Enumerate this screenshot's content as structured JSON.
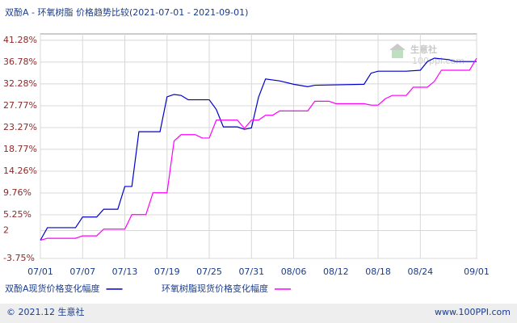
{
  "chart_data": {
    "type": "line",
    "title": "双酚A - 环氧树脂 价格趋势比较(2021-07-01 - 2021-09-01)",
    "watermark": "生意社",
    "watermark_url": "100ppi.com",
    "footer_left": "© 2021.12 生意社",
    "footer_right": "www.100PPI.com",
    "xlim": [
      "07/01",
      "09/01"
    ],
    "xticks": [
      "07/01",
      "07/07",
      "07/13",
      "07/19",
      "07/25",
      "07/31",
      "08/06",
      "08/12",
      "08/18",
      "08/24",
      "09/01"
    ],
    "ylim": [
      -3.75,
      42.6
    ],
    "yticks": [
      {
        "value": 41.28,
        "label": "41.28%"
      },
      {
        "value": 36.78,
        "label": "36.78%"
      },
      {
        "value": 32.28,
        "label": "32.28%"
      },
      {
        "value": 27.77,
        "label": "27.77%"
      },
      {
        "value": 23.27,
        "label": "23.27%"
      },
      {
        "value": 18.77,
        "label": "18.77%"
      },
      {
        "value": 14.26,
        "label": "14.26%"
      },
      {
        "value": 9.76,
        "label": "9.76%"
      },
      {
        "value": 5.25,
        "label": "5.25%"
      },
      2,
      {
        "value": -3.75,
        "label": "-3.75%"
      }
    ],
    "grid": true,
    "series": [
      {
        "name": "双酚A现货价格变化幅度",
        "color": "#0000cc",
        "x": [
          "07/01",
          "07/02",
          "07/06",
          "07/07",
          "07/09",
          "07/10",
          "07/12",
          "07/13",
          "07/14",
          "07/15",
          "07/18",
          "07/19",
          "07/20",
          "07/21",
          "07/22",
          "07/25",
          "07/26",
          "07/27",
          "07/29",
          "07/30",
          "07/31",
          "08/01",
          "08/02",
          "08/04",
          "08/06",
          "08/08",
          "08/09",
          "08/16",
          "08/17",
          "08/18",
          "08/22",
          "08/24",
          "08/25",
          "08/26",
          "08/28",
          "08/29",
          "09/01"
        ],
        "values": [
          0,
          2.6,
          2.6,
          4.8,
          4.8,
          6.4,
          6.4,
          11.1,
          11.1,
          22.4,
          22.4,
          29.6,
          30.1,
          29.9,
          29,
          29,
          27,
          23.4,
          23.4,
          22.9,
          23.2,
          29.5,
          33.3,
          32.9,
          32.2,
          31.7,
          32,
          32.2,
          34.5,
          34.9,
          34.9,
          35.1,
          36.9,
          37.6,
          37.3,
          36.9,
          36.9
        ]
      },
      {
        "name": "环氧树脂现货价格变化幅度",
        "color": "#ff00ff",
        "x": [
          "07/01",
          "07/02",
          "07/06",
          "07/07",
          "07/09",
          "07/10",
          "07/13",
          "07/14",
          "07/16",
          "07/17",
          "07/19",
          "07/20",
          "07/21",
          "07/23",
          "07/24",
          "07/25",
          "07/26",
          "07/29",
          "07/30",
          "07/31",
          "08/01",
          "08/02",
          "08/03",
          "08/04",
          "08/08",
          "08/09",
          "08/11",
          "08/12",
          "08/16",
          "08/17",
          "08/18",
          "08/19",
          "08/20",
          "08/22",
          "08/23",
          "08/25",
          "08/26",
          "08/27",
          "08/31",
          "09/01"
        ],
        "values": [
          0,
          0.4,
          0.4,
          0.9,
          0.9,
          2.3,
          2.3,
          5.3,
          5.3,
          9.8,
          9.8,
          20.5,
          21.8,
          21.8,
          21.1,
          21.1,
          24.8,
          24.8,
          23.1,
          24.8,
          24.8,
          25.8,
          25.8,
          26.7,
          26.7,
          28.7,
          28.7,
          28.2,
          28.2,
          27.9,
          27.9,
          29.2,
          29.9,
          29.9,
          31.6,
          31.6,
          32.8,
          35.1,
          35.1,
          37.6
        ]
      }
    ]
  }
}
